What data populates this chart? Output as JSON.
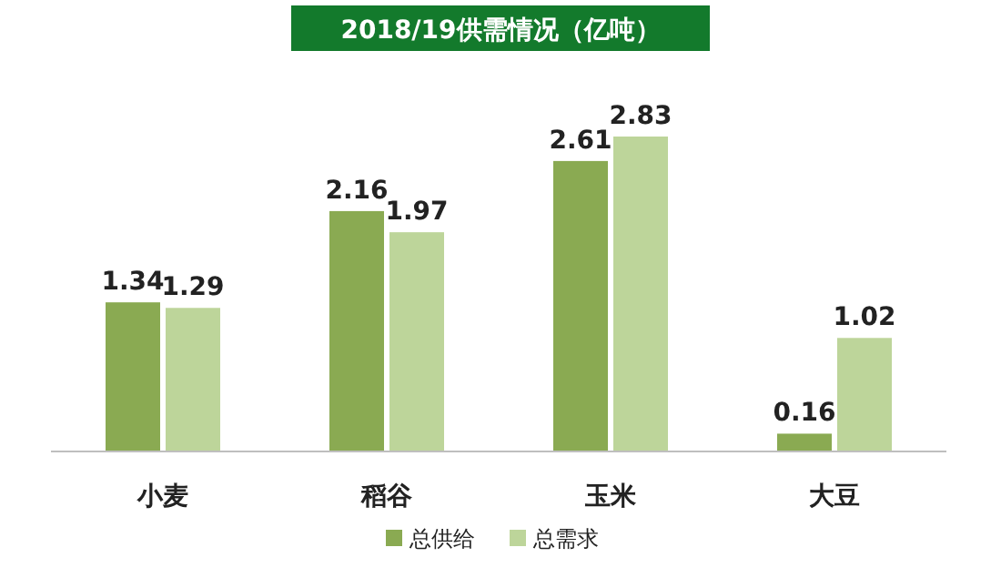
{
  "chart_data": {
    "type": "bar",
    "title": "2018/19供需情况（亿吨）",
    "categories": [
      "小麦",
      "稻谷",
      "玉米",
      "大豆"
    ],
    "series": [
      {
        "name": "总供给",
        "color": "#8aaa52",
        "values": [
          1.34,
          2.16,
          2.61,
          0.16
        ]
      },
      {
        "name": "总需求",
        "color": "#bdd59a",
        "values": [
          1.29,
          1.97,
          2.83,
          1.02
        ]
      }
    ],
    "data_labels": true,
    "legend": "bottom"
  }
}
